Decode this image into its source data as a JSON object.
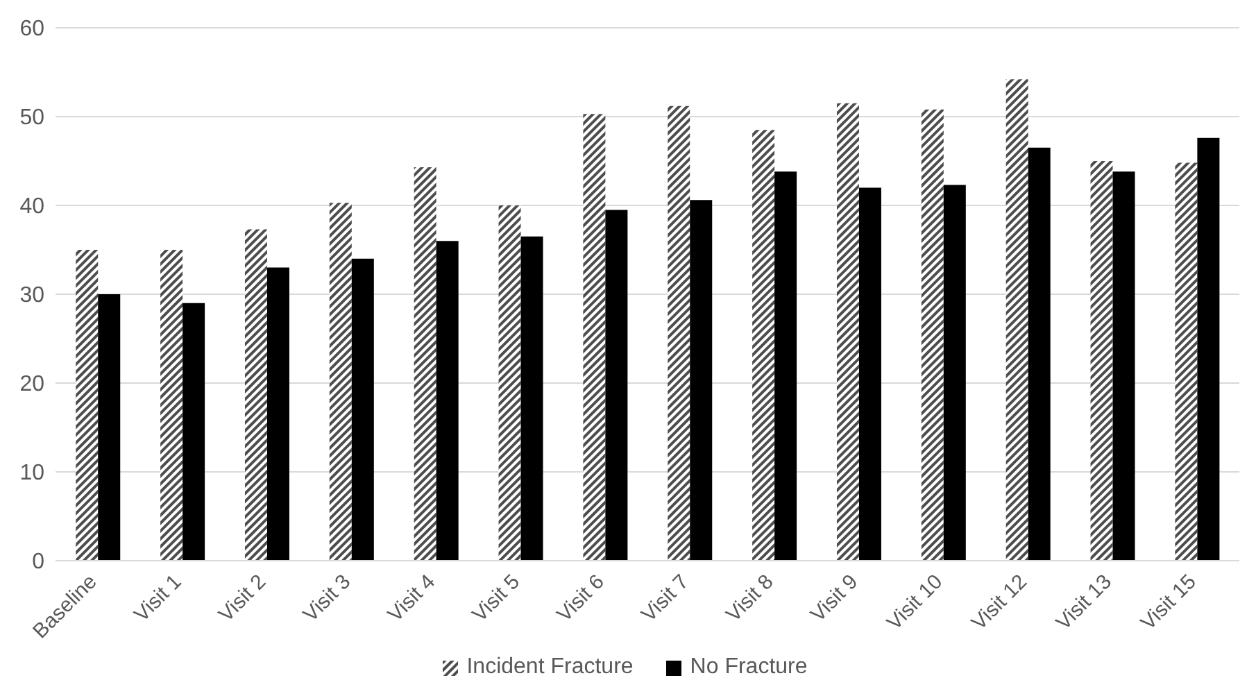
{
  "chart_data": {
    "type": "bar",
    "categories": [
      "Baseline",
      "Visit 1",
      "Visit 2",
      "Visit 3",
      "Visit 4",
      "Visit 5",
      "Visit 6",
      "Visit 7",
      "Visit 8",
      "Visit 9",
      "Visit 10",
      "Visit 12",
      "Visit 13",
      "Visit 15"
    ],
    "series": [
      {
        "name": "Incident Fracture",
        "color": "#4d4d4d",
        "values": [
          35,
          35,
          37.3,
          40.3,
          44.3,
          40,
          50.3,
          51.2,
          48.5,
          51.5,
          50.8,
          54.2,
          45,
          44.8
        ]
      },
      {
        "name": "No Fracture",
        "color": "#000000",
        "values": [
          30,
          29,
          33,
          34,
          36,
          36.5,
          39.5,
          40.6,
          43.8,
          42,
          42.3,
          46.5,
          43.8,
          47.6
        ]
      }
    ],
    "ylim": [
      0,
      60
    ],
    "yticks": [
      0,
      10,
      20,
      30,
      40,
      50,
      60
    ],
    "grid": "y",
    "legend": "bottom"
  }
}
